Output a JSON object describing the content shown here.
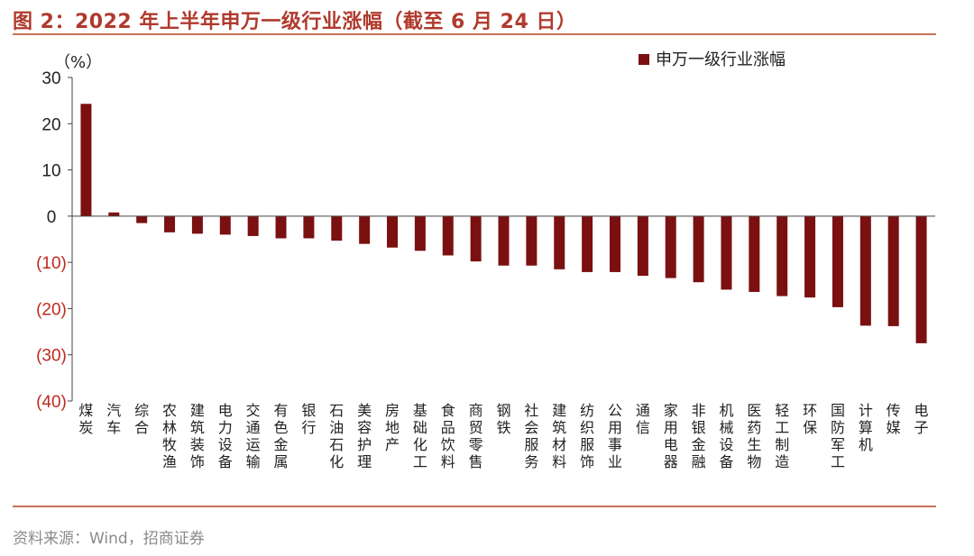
{
  "figure": {
    "title": "图 2：2022 年上半年申万一级行业涨幅（截至 6 月 24 日）",
    "source": "资料来源：Wind，招商证券"
  },
  "colors": {
    "bar": "#7b1010",
    "negative_tick": "#c0291e",
    "positive_tick": "#222222",
    "accent_rule": "#c8745a",
    "title": "#b03a2e"
  },
  "chart_data": {
    "type": "bar",
    "unit_label": "（%）",
    "legend": {
      "position": "top-right"
    },
    "ylim": [
      -40,
      30
    ],
    "yticks": [
      {
        "value": 30,
        "label": "30"
      },
      {
        "value": 20,
        "label": "20"
      },
      {
        "value": 10,
        "label": "10"
      },
      {
        "value": 0,
        "label": "0"
      },
      {
        "value": -10,
        "label": "(10)"
      },
      {
        "value": -20,
        "label": "(20)"
      },
      {
        "value": -30,
        "label": "(30)"
      },
      {
        "value": -40,
        "label": "(40)"
      }
    ],
    "grid": false,
    "categories": [
      "煤炭",
      "汽车",
      "综合",
      "农林牧渔",
      "建筑装饰",
      "电力设备",
      "交通运输",
      "有色金属",
      "银行",
      "石油石化",
      "美容护理",
      "房地产",
      "基础化工",
      "食品饮料",
      "商贸零售",
      "钢铁",
      "社会服务",
      "建筑材料",
      "纺织服饰",
      "公用事业",
      "通信",
      "家用电器",
      "非银金融",
      "机械设备",
      "医药生物",
      "轻工制造",
      "环保",
      "国防军工",
      "计算机",
      "传媒",
      "电子"
    ],
    "series": [
      {
        "name": "申万一级行业涨幅",
        "values": [
          24.3,
          0.8,
          -1.5,
          -3.5,
          -3.8,
          -4.0,
          -4.3,
          -4.8,
          -4.8,
          -5.3,
          -6.0,
          -6.8,
          -7.5,
          -8.5,
          -9.8,
          -10.7,
          -10.7,
          -11.5,
          -12.1,
          -12.1,
          -12.9,
          -13.4,
          -14.3,
          -15.9,
          -16.4,
          -17.3,
          -17.6,
          -19.7,
          -23.7,
          -23.8,
          -27.5
        ]
      }
    ]
  }
}
